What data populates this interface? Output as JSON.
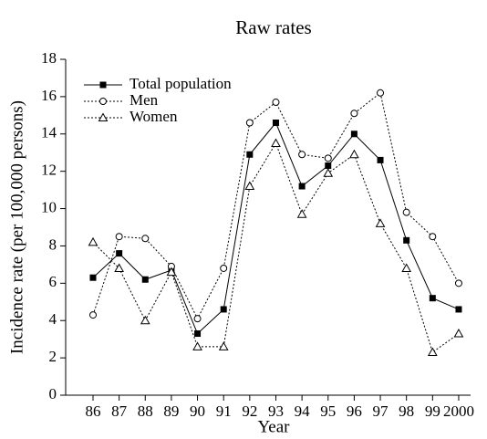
{
  "chart_data": {
    "type": "line",
    "title": "Raw rates",
    "xlabel": "Year",
    "ylabel": "Incidence rate (per 100,000 persons)",
    "categories": [
      "86",
      "87",
      "88",
      "89",
      "90",
      "91",
      "92",
      "93",
      "94",
      "95",
      "96",
      "97",
      "98",
      "99",
      "2000"
    ],
    "series": [
      {
        "name": "Total population",
        "color": "#000000",
        "marker": "square",
        "dash": "solid",
        "values": [
          6.3,
          7.6,
          6.2,
          6.7,
          3.3,
          4.6,
          12.9,
          14.6,
          11.2,
          12.3,
          14.0,
          12.6,
          8.3,
          5.2,
          4.6
        ]
      },
      {
        "name": "Men",
        "color": "#000000",
        "marker": "circle",
        "dash": "dotted",
        "values": [
          4.3,
          8.5,
          8.4,
          6.9,
          4.1,
          6.8,
          14.6,
          15.7,
          12.9,
          12.7,
          15.1,
          16.2,
          9.8,
          8.5,
          6.0
        ]
      },
      {
        "name": "Women",
        "color": "#000000",
        "marker": "triangle",
        "dash": "dotted",
        "values": [
          8.2,
          6.8,
          4.0,
          6.6,
          2.6,
          2.6,
          11.2,
          13.5,
          9.7,
          11.9,
          12.9,
          9.2,
          6.8,
          2.3,
          3.3
        ]
      }
    ],
    "ylim": [
      0,
      18
    ],
    "yticks": [
      0,
      2,
      4,
      6,
      8,
      10,
      12,
      14,
      16,
      18
    ],
    "legend": "upper left",
    "grid": false
  }
}
